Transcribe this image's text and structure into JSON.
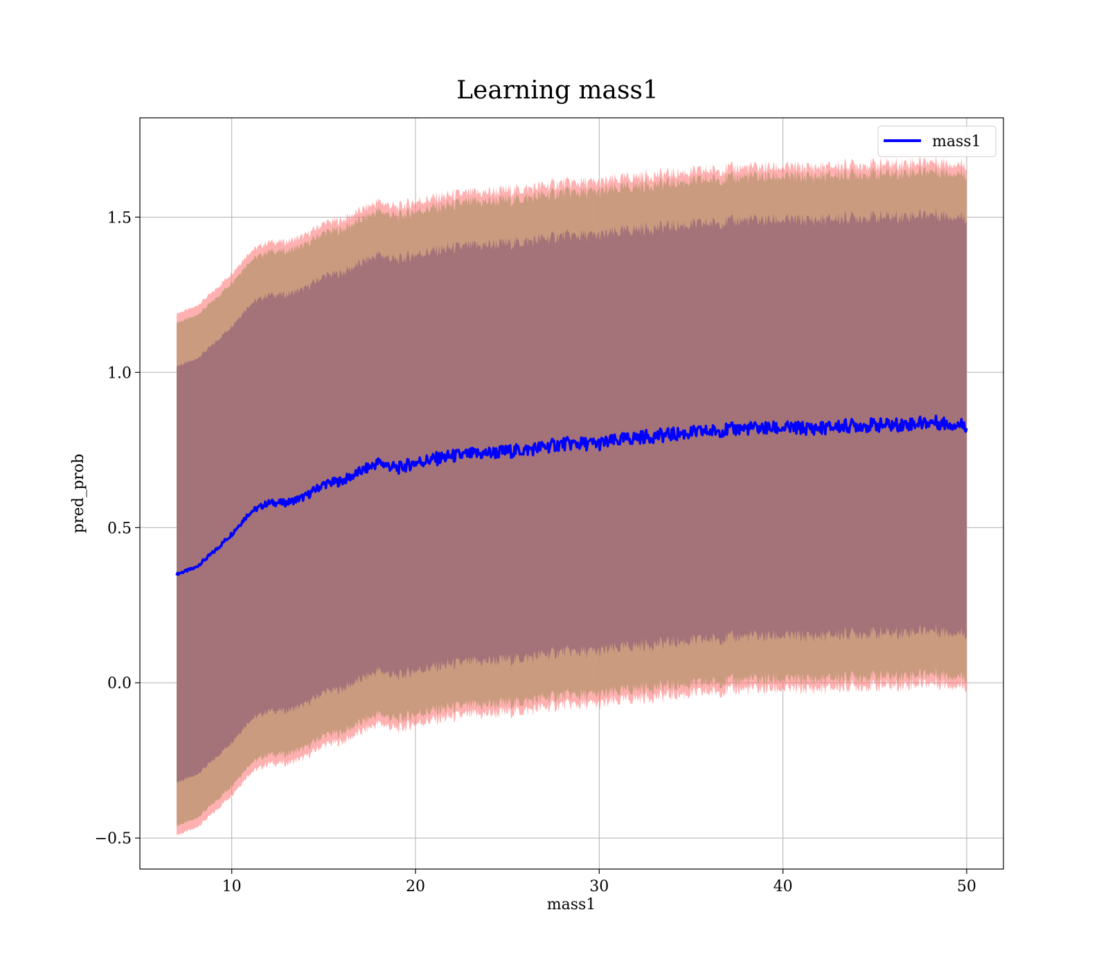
{
  "chart_data": {
    "type": "line",
    "title": "Learning mass1",
    "xlabel": "mass1",
    "ylabel": "pred_prob",
    "xlim": [
      5,
      52
    ],
    "ylim": [
      -0.6,
      1.82
    ],
    "xticks": [
      10,
      20,
      30,
      40,
      50
    ],
    "xtick_labels": [
      "10",
      "20",
      "30",
      "40",
      "50"
    ],
    "yticks": [
      -0.5,
      0.0,
      0.5,
      1.0,
      1.5
    ],
    "ytick_labels": [
      "−0.5",
      "0.0",
      "0.5",
      "1.0",
      "1.5"
    ],
    "grid": true,
    "legend": {
      "position": "top-right",
      "entries": [
        "mass1"
      ]
    },
    "colors": {
      "line": "#0000ff",
      "band_outer": "#ff6f6f",
      "band_middle": "#c79a7c",
      "band_inner": "#a17079"
    },
    "series": [
      {
        "name": "mass1",
        "x": [
          7,
          8,
          9,
          10,
          11,
          12,
          13,
          14,
          15,
          16,
          17,
          18,
          19,
          20,
          22,
          24,
          26,
          28,
          30,
          32,
          34,
          36,
          38,
          40,
          42,
          44,
          46,
          48,
          50
        ],
        "y": [
          0.35,
          0.37,
          0.42,
          0.48,
          0.55,
          0.58,
          0.58,
          0.6,
          0.64,
          0.65,
          0.68,
          0.71,
          0.69,
          0.71,
          0.73,
          0.74,
          0.75,
          0.77,
          0.77,
          0.79,
          0.8,
          0.81,
          0.82,
          0.82,
          0.82,
          0.83,
          0.83,
          0.84,
          0.83
        ]
      }
    ],
    "bands": [
      {
        "offset": 0.67,
        "role": "inner"
      },
      {
        "offset": 0.81,
        "role": "middle"
      },
      {
        "offset": 0.84,
        "role": "outer"
      }
    ]
  }
}
